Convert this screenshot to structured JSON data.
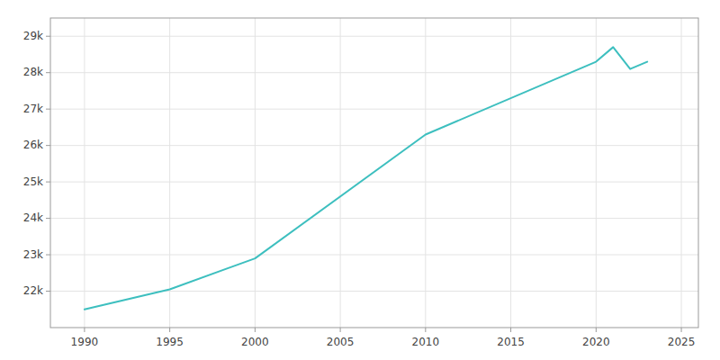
{
  "chart_data": {
    "type": "line",
    "x": [
      1990,
      1995,
      2000,
      2010,
      2020,
      2021,
      2022,
      2023
    ],
    "values": [
      21500,
      22050,
      22900,
      26300,
      28300,
      28700,
      28100,
      28300
    ],
    "color": "#3dbfbf",
    "xlim": [
      1988,
      2026
    ],
    "ylim": [
      21000,
      29500
    ],
    "xticks": [
      1990,
      1995,
      2000,
      2005,
      2010,
      2015,
      2020,
      2025
    ],
    "yticks": [
      {
        "value": 22000,
        "label": "22k"
      },
      {
        "value": 23000,
        "label": "23k"
      },
      {
        "value": 24000,
        "label": "24k"
      },
      {
        "value": 25000,
        "label": "25k"
      },
      {
        "value": 26000,
        "label": "26k"
      },
      {
        "value": 27000,
        "label": "27k"
      },
      {
        "value": 28000,
        "label": "28k"
      },
      {
        "value": 29000,
        "label": "29k"
      }
    ],
    "grid": true
  }
}
